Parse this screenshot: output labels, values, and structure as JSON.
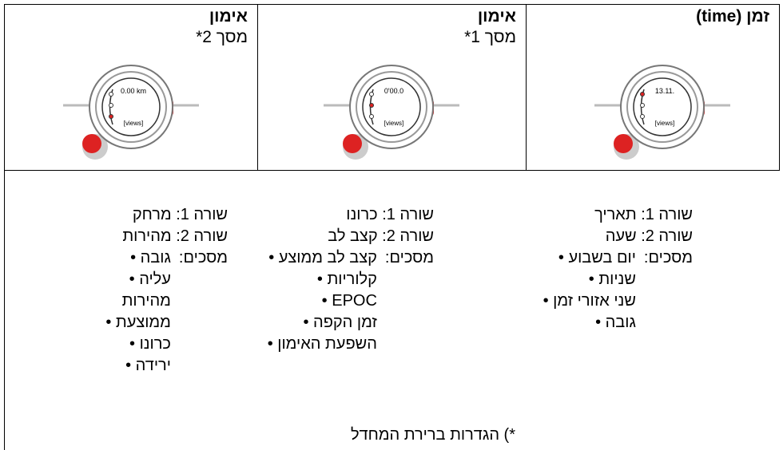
{
  "columns": [
    {
      "title": "זמן (time)",
      "watch_display": [
        "13.11.",
        "[views]"
      ],
      "rows": [
        "שורה 1: תאריך",
        "שורה 2: שעה"
      ],
      "screens_label": "מסכים:",
      "screens": [
        "יום בשבוע",
        "שניות",
        "שני אזורי זמן",
        "גובה"
      ]
    },
    {
      "title": "אימון",
      "subtitle": "מסך 1*",
      "watch_display": [
        "0'00.0",
        "[views]"
      ],
      "rows": [
        "שורה 1: כרונו",
        "שורה 2: קצב לב"
      ],
      "screens_label": "מסכים:",
      "screens": [
        "קצב לב ממוצע",
        "קלוריות",
        "EPOC",
        "זמן הקפה",
        "השפעת האימון"
      ]
    },
    {
      "title": "אימון",
      "subtitle": "מסך 2*",
      "watch_display": [
        "0.00 km",
        "[views]"
      ],
      "rows": [
        "שורה 1: מרחק",
        "שורה 2: מהירות"
      ],
      "screens_label": "מסכים:",
      "screens": [
        "גובה",
        "עליה",
        "מהירות ממוצעת",
        "כרונו",
        "ירידה"
      ]
    }
  ],
  "footnote": "*) הגדרות ברירת המחדל"
}
